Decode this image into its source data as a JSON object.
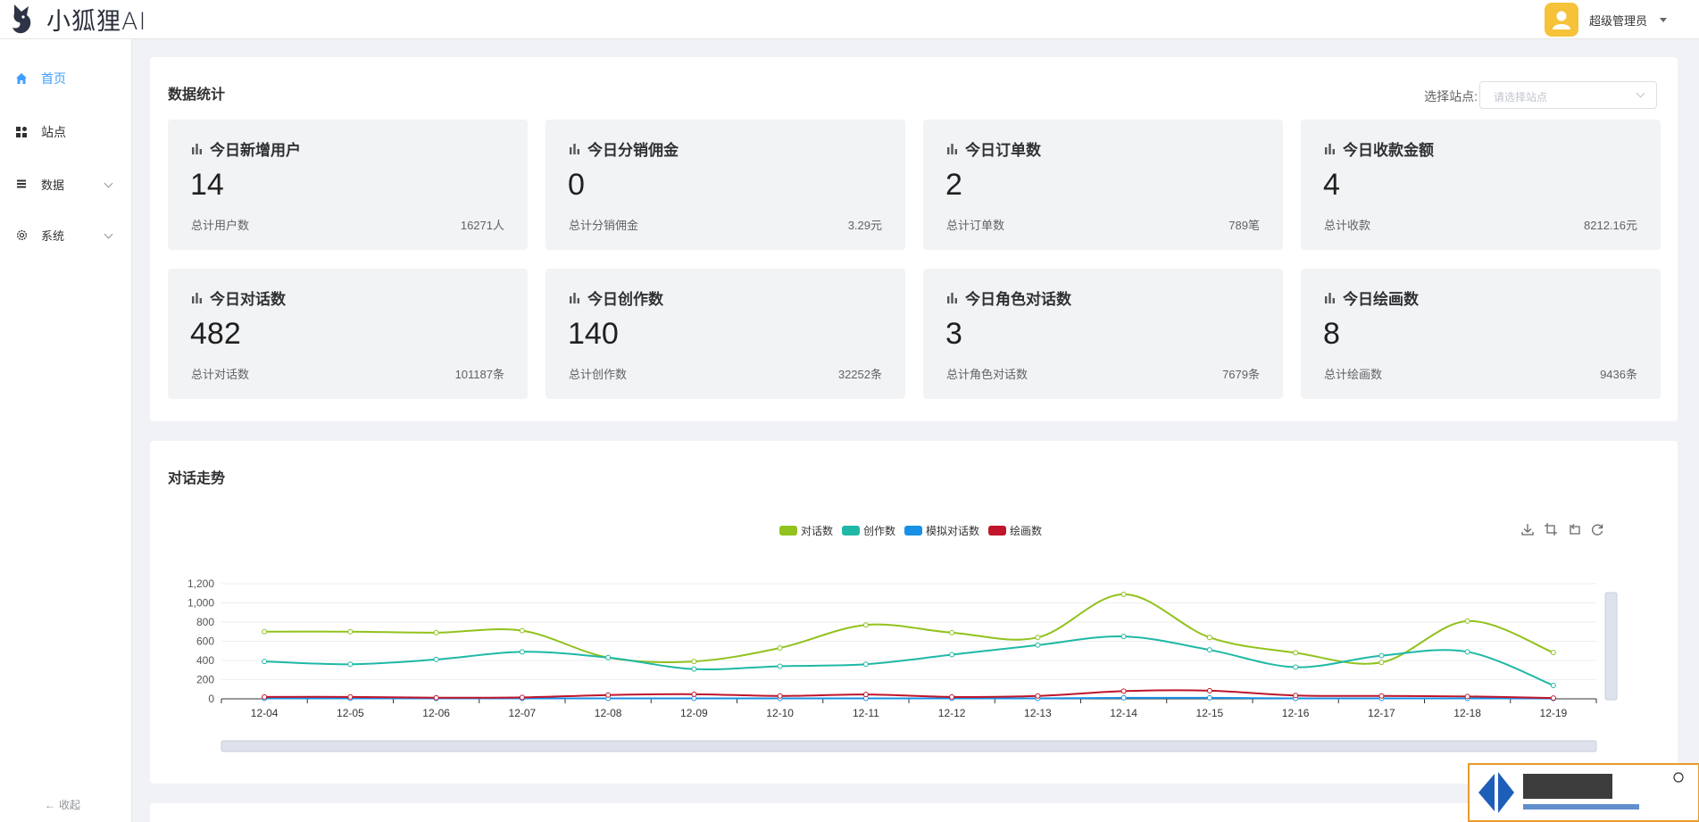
{
  "app": {
    "logo_text": "小狐狸AI",
    "user_name": "超级管理员"
  },
  "sidebar": {
    "items": [
      {
        "label": "首页",
        "icon": "home-icon",
        "active": true,
        "expandable": false
      },
      {
        "label": "站点",
        "icon": "grid-icon",
        "active": false,
        "expandable": false
      },
      {
        "label": "数据",
        "icon": "list-icon",
        "active": false,
        "expandable": true
      },
      {
        "label": "系统",
        "icon": "gear-icon",
        "active": false,
        "expandable": true
      }
    ],
    "collapse_label": "收起"
  },
  "stats": {
    "title": "数据统计",
    "site_label": "选择站点:",
    "site_placeholder": "请选择站点",
    "cards": [
      {
        "title": "今日新增用户",
        "value": "14",
        "sub": "总计用户数",
        "total": "16271人"
      },
      {
        "title": "今日分销佣金",
        "value": "0",
        "sub": "总计分销佣金",
        "total": "3.29元"
      },
      {
        "title": "今日订单数",
        "value": "2",
        "sub": "总计订单数",
        "total": "789笔"
      },
      {
        "title": "今日收款金额",
        "value": "4",
        "sub": "总计收款",
        "total": "8212.16元"
      },
      {
        "title": "今日对话数",
        "value": "482",
        "sub": "总计对话数",
        "total": "101187条"
      },
      {
        "title": "今日创作数",
        "value": "140",
        "sub": "总计创作数",
        "total": "32252条"
      },
      {
        "title": "今日角色对话数",
        "value": "3",
        "sub": "总计角色对话数",
        "total": "7679条"
      },
      {
        "title": "今日绘画数",
        "value": "8",
        "sub": "总计绘画数",
        "total": "9436条"
      }
    ]
  },
  "trend": {
    "title": "对话走势"
  },
  "chart_data": {
    "type": "line",
    "x": [
      "12-04",
      "12-05",
      "12-06",
      "12-07",
      "12-08",
      "12-09",
      "12-10",
      "12-11",
      "12-12",
      "12-13",
      "12-14",
      "12-15",
      "12-16",
      "12-17",
      "12-18",
      "12-19"
    ],
    "ylim": [
      0,
      1200
    ],
    "yticks": [
      "0",
      "200",
      "400",
      "600",
      "800",
      "1,000",
      "1,200"
    ],
    "ytick_values": [
      0,
      200,
      400,
      600,
      800,
      1000,
      1200
    ],
    "legend_position": "top",
    "grid": true,
    "series": [
      {
        "name": "对话数",
        "color": "#91c21d",
        "values": [
          700,
          700,
          690,
          710,
          430,
          390,
          530,
          770,
          690,
          640,
          1090,
          640,
          480,
          380,
          810,
          482
        ]
      },
      {
        "name": "创作数",
        "color": "#1fb8a6",
        "values": [
          390,
          360,
          410,
          490,
          430,
          310,
          340,
          360,
          460,
          560,
          650,
          510,
          330,
          450,
          490,
          140
        ]
      },
      {
        "name": "模拟对话数",
        "color": "#1890e6",
        "values": [
          5,
          5,
          5,
          5,
          5,
          5,
          5,
          5,
          5,
          5,
          10,
          10,
          5,
          5,
          5,
          3
        ]
      },
      {
        "name": "绘画数",
        "color": "#c0152a",
        "values": [
          20,
          20,
          12,
          15,
          40,
          48,
          30,
          45,
          20,
          30,
          80,
          85,
          35,
          30,
          25,
          8
        ]
      }
    ]
  }
}
